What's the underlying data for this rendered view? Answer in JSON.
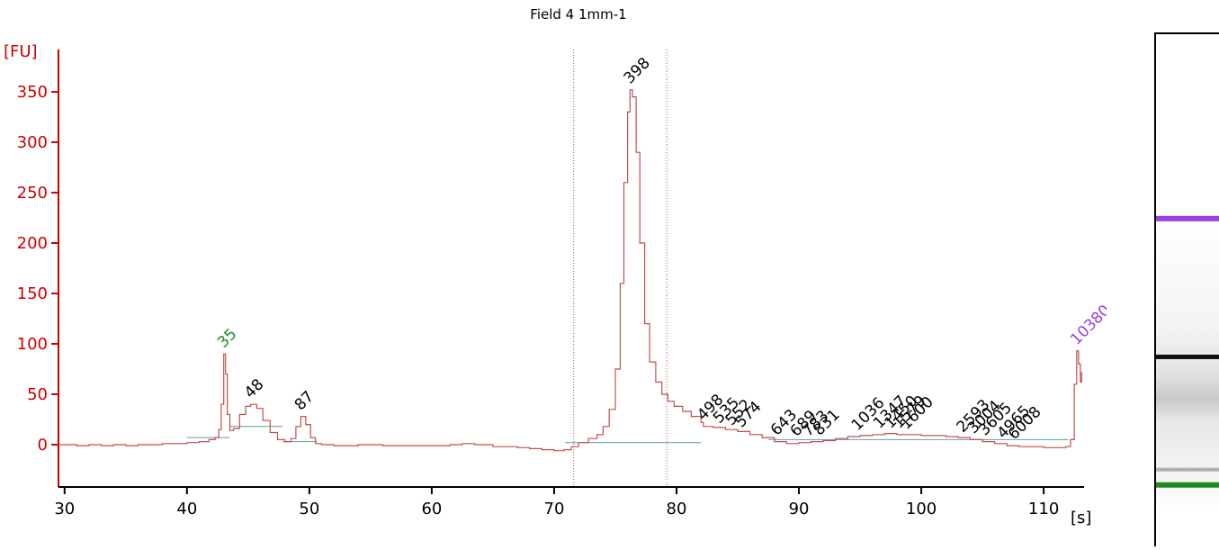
{
  "chart_data": {
    "type": "line",
    "title": "Field 4 1mm-1",
    "ylabel": "[FU]",
    "xlabel": "[s]",
    "xlim": [
      29.5,
      113.3
    ],
    "ylim": [
      -42,
      392
    ],
    "x_ticks": [
      30,
      40,
      50,
      60,
      70,
      80,
      90,
      100,
      110
    ],
    "y_ticks": [
      0,
      50,
      100,
      150,
      200,
      250,
      300,
      350
    ],
    "region_markers_x": [
      71.6,
      79.2
    ],
    "peaks": [
      {
        "label": "35",
        "x": 43.0,
        "y": 90,
        "color": "#1e8a1e"
      },
      {
        "label": "48",
        "x": 45.2,
        "y": 40,
        "color": "#000000"
      },
      {
        "label": "87",
        "x": 49.3,
        "y": 28,
        "color": "#000000"
      },
      {
        "label": "398",
        "x": 76.2,
        "y": 352,
        "color": "#000000"
      },
      {
        "label": "498",
        "x": 82.2,
        "y": 18,
        "color": "#000000"
      },
      {
        "label": "535",
        "x": 83.5,
        "y": 15,
        "color": "#000000"
      },
      {
        "label": "552",
        "x": 84.5,
        "y": 13,
        "color": "#000000"
      },
      {
        "label": "574",
        "x": 85.3,
        "y": 11,
        "color": "#000000"
      },
      {
        "label": "643",
        "x": 88.2,
        "y": 3,
        "color": "#000000"
      },
      {
        "label": "689",
        "x": 89.8,
        "y": 2,
        "color": "#000000"
      },
      {
        "label": "783",
        "x": 90.8,
        "y": 2,
        "color": "#000000"
      },
      {
        "label": "831",
        "x": 91.7,
        "y": 3,
        "color": "#000000"
      },
      {
        "label": "1036",
        "x": 94.8,
        "y": 8,
        "color": "#000000"
      },
      {
        "label": "1347",
        "x": 96.6,
        "y": 10,
        "color": "#000000"
      },
      {
        "label": "1450",
        "x": 97.5,
        "y": 10,
        "color": "#000000"
      },
      {
        "label": "1579",
        "x": 98.2,
        "y": 10,
        "color": "#000000"
      },
      {
        "label": "1600",
        "x": 98.8,
        "y": 9,
        "color": "#000000"
      },
      {
        "label": "2593",
        "x": 103.4,
        "y": 6,
        "color": "#000000"
      },
      {
        "label": "3004",
        "x": 104.3,
        "y": 5,
        "color": "#000000"
      },
      {
        "label": "3605",
        "x": 105.2,
        "y": 3,
        "color": "#000000"
      },
      {
        "label": "4965",
        "x": 106.7,
        "y": 0,
        "color": "#000000"
      },
      {
        "label": "6008",
        "x": 107.6,
        "y": -1,
        "color": "#000000"
      },
      {
        "label": "10380",
        "x": 112.7,
        "y": 93,
        "color": "#9b3fe0"
      }
    ],
    "series": [
      {
        "color": "#c0504d",
        "points": [
          [
            29.5,
            0
          ],
          [
            31,
            -1
          ],
          [
            32,
            0
          ],
          [
            33,
            -1
          ],
          [
            34,
            0
          ],
          [
            35,
            -1
          ],
          [
            36,
            0
          ],
          [
            37,
            0
          ],
          [
            38,
            1
          ],
          [
            39,
            1
          ],
          [
            40,
            2
          ],
          [
            41,
            3
          ],
          [
            41.8,
            5
          ],
          [
            42.3,
            7
          ],
          [
            42.6,
            15
          ],
          [
            42.8,
            40
          ],
          [
            43.0,
            90
          ],
          [
            43.15,
            70
          ],
          [
            43.3,
            30
          ],
          [
            43.5,
            14
          ],
          [
            43.8,
            16
          ],
          [
            44.3,
            30
          ],
          [
            44.8,
            38
          ],
          [
            45.2,
            40
          ],
          [
            45.7,
            36
          ],
          [
            46.2,
            24
          ],
          [
            46.8,
            12
          ],
          [
            47.4,
            5
          ],
          [
            48.0,
            3
          ],
          [
            48.5,
            6
          ],
          [
            48.9,
            18
          ],
          [
            49.3,
            28
          ],
          [
            49.7,
            20
          ],
          [
            50.1,
            7
          ],
          [
            50.5,
            1
          ],
          [
            51,
            0
          ],
          [
            52,
            -1
          ],
          [
            54,
            0
          ],
          [
            56,
            -1
          ],
          [
            58,
            -1
          ],
          [
            60,
            -1
          ],
          [
            61.5,
            0
          ],
          [
            62.5,
            1
          ],
          [
            63.5,
            0
          ],
          [
            65,
            -2
          ],
          [
            67,
            -3
          ],
          [
            68,
            -4
          ],
          [
            69,
            -5
          ],
          [
            70,
            -6
          ],
          [
            70.8,
            -5
          ],
          [
            71.4,
            -2
          ],
          [
            72,
            2
          ],
          [
            72.8,
            6
          ],
          [
            73.5,
            10
          ],
          [
            74.0,
            18
          ],
          [
            74.5,
            35
          ],
          [
            75.0,
            75
          ],
          [
            75.4,
            160
          ],
          [
            75.7,
            260
          ],
          [
            76.0,
            330
          ],
          [
            76.2,
            352
          ],
          [
            76.4,
            345
          ],
          [
            76.7,
            290
          ],
          [
            77.0,
            200
          ],
          [
            77.4,
            120
          ],
          [
            77.8,
            82
          ],
          [
            78.3,
            62
          ],
          [
            78.8,
            50
          ],
          [
            79.3,
            43
          ],
          [
            79.8,
            38
          ],
          [
            80.5,
            33
          ],
          [
            81.2,
            28
          ],
          [
            82,
            22
          ],
          [
            82.2,
            18
          ],
          [
            83,
            17
          ],
          [
            84,
            15
          ],
          [
            85,
            13
          ],
          [
            86,
            10
          ],
          [
            87,
            7
          ],
          [
            88,
            3
          ],
          [
            89,
            1
          ],
          [
            90,
            2
          ],
          [
            91,
            3
          ],
          [
            92,
            4
          ],
          [
            93,
            6
          ],
          [
            94,
            8
          ],
          [
            95,
            9
          ],
          [
            96,
            10
          ],
          [
            97,
            11
          ],
          [
            98,
            10
          ],
          [
            99,
            10
          ],
          [
            100,
            9
          ],
          [
            101,
            9
          ],
          [
            102,
            8
          ],
          [
            103,
            7
          ],
          [
            104,
            5
          ],
          [
            105,
            3
          ],
          [
            106,
            1
          ],
          [
            107,
            -1
          ],
          [
            108,
            -2
          ],
          [
            109,
            -2
          ],
          [
            110,
            -3
          ],
          [
            111,
            -3
          ],
          [
            111.8,
            -2
          ],
          [
            112.2,
            5
          ],
          [
            112.5,
            60
          ],
          [
            112.7,
            93
          ],
          [
            112.85,
            80
          ],
          [
            113.0,
            62
          ],
          [
            113.1,
            72
          ]
        ]
      }
    ],
    "baselines": [
      {
        "color": "#5f9ea0",
        "x": [
          40.0,
          43.5
        ],
        "y": 7
      },
      {
        "color": "#5f9ea0",
        "x": [
          43.5,
          47.8
        ],
        "y": 18
      },
      {
        "color": "#5f9ea0",
        "x": [
          47.8,
          50.6
        ],
        "y": 3
      },
      {
        "color": "#5f9ea0",
        "x": [
          70.9,
          82.0
        ],
        "y": 2
      },
      {
        "color": "#5f9ea0",
        "x": [
          87.5,
          112.0
        ],
        "y": 5
      }
    ]
  },
  "gel": {
    "bands": [
      {
        "position": 0.36,
        "color": "#9b3fe0",
        "kind": "marker"
      },
      {
        "position": 0.63,
        "color": "#111111",
        "kind": "sample"
      },
      {
        "position": 0.85,
        "color": "#b0b0b0",
        "kind": "sample"
      },
      {
        "position": 0.88,
        "color": "#1e8a1e",
        "kind": "marker"
      }
    ]
  }
}
